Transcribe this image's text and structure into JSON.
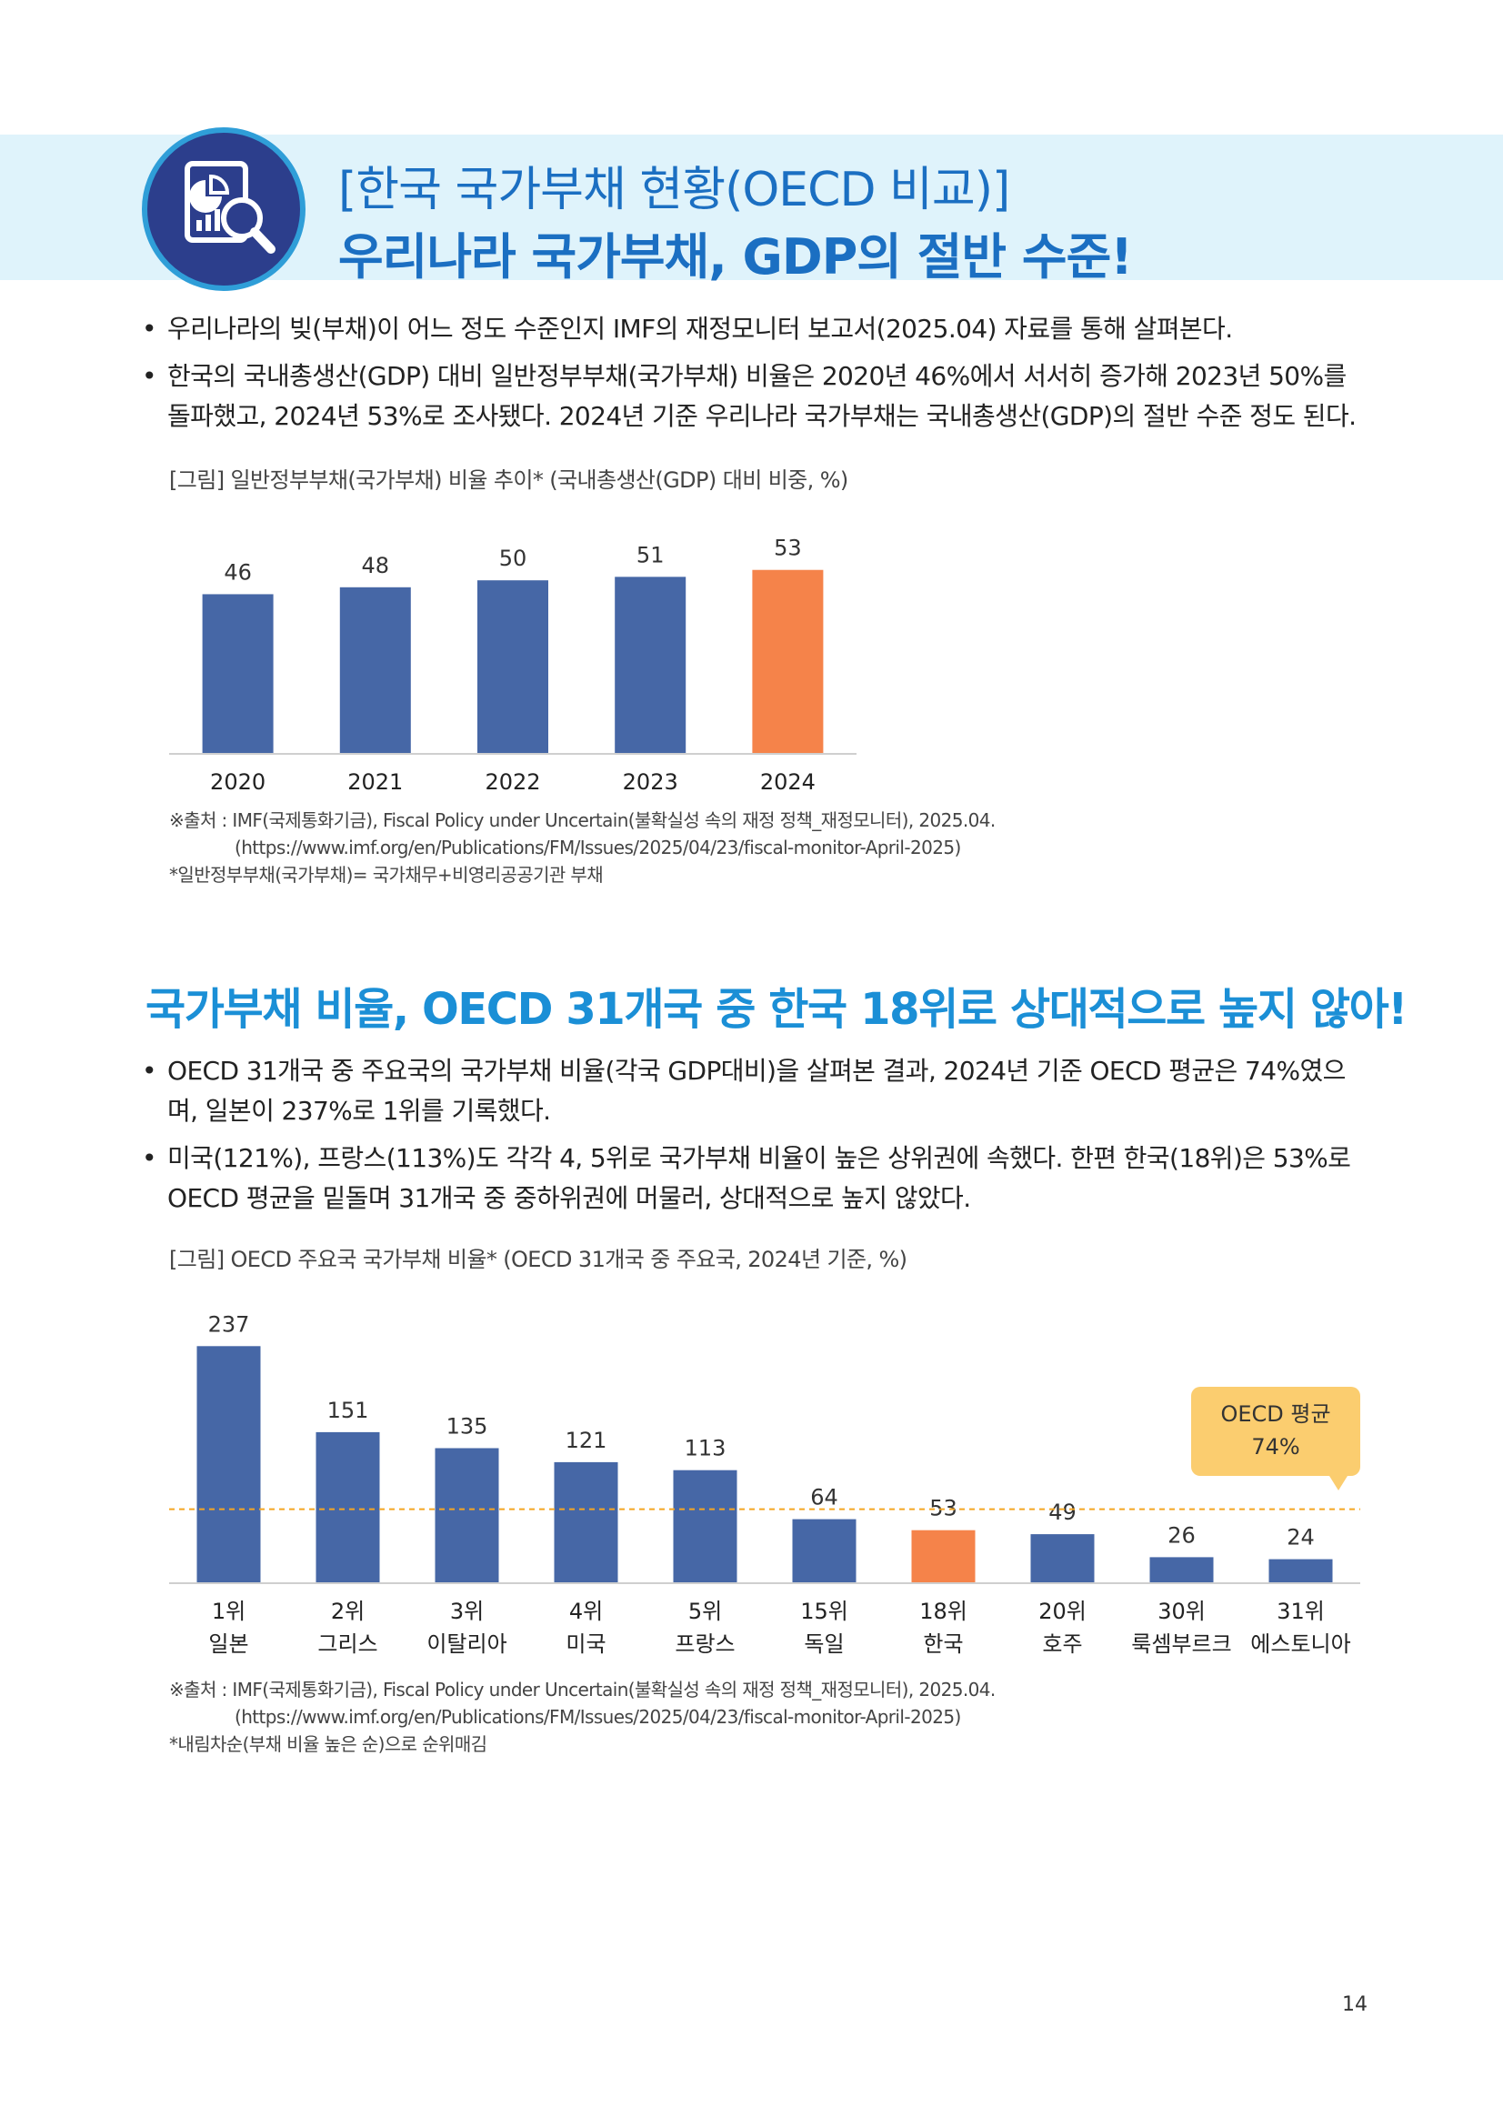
{
  "header": {
    "title_line1": "[한국 국가부채 현황(OECD 비교)]",
    "title_line2": "우리나라 국가부채, GDP의 절반 수준!",
    "icon": "report-magnifier-icon"
  },
  "section1": {
    "bullets": [
      "우리나라의 빚(부채)이 어느 정도 수준인지 IMF의 재정모니터 보고서(2025.04) 자료를 통해 살펴본다.",
      "한국의 국내총생산(GDP) 대비 일반정부부채(국가부채) 비율은 2020년 46%에서 서서히 증가해 2023년 50%를 돌파했고, 2024년 53%로 조사됐다. 2024년 기준 우리나라 국가부채는 국내총생산(GDP)의 절반 수준 정도 된다."
    ],
    "caption": "[그림] 일반정부부채(국가부채) 비율 추이* (국내총생산(GDP) 대비 비중, %)",
    "source": [
      "※출처 : IMF(국제통화기금), Fiscal Policy under Uncertain(불확실성 속의 재정 정책_재정모니터), 2025.04.",
      "(https://www.imf.org/en/Publications/FM/Issues/2025/04/23/fiscal-monitor-April-2025)",
      "*일반정부부채(국가부채)= 국가채무+비영리공공기관 부채"
    ]
  },
  "section2": {
    "heading": "국가부채 비율, OECD 31개국 중 한국 18위로 상대적으로 높지 않아!",
    "bullets": [
      "OECD 31개국 중 주요국의 국가부채 비율(각국 GDP대비)을 살펴본 결과, 2024년 기준 OECD 평균은 74%였으며, 일본이 237%로 1위를 기록했다.",
      "미국(121%), 프랑스(113%)도 각각 4, 5위로 국가부채 비율이 높은 상위권에 속했다. 한편 한국(18위)은 53%로 OECD 평균을 밑돌며 31개국 중 중하위권에 머물러, 상대적으로 높지 않았다."
    ],
    "caption": "[그림] OECD 주요국 국가부채 비율* (OECD 31개국 중 주요국, 2024년 기준, %)",
    "source": [
      "※출처 : IMF(국제통화기금), Fiscal Policy under Uncertain(불확실성 속의 재정 정책_재정모니터), 2025.04.",
      "(https://www.imf.org/en/Publications/FM/Issues/2025/04/23/fiscal-monitor-April-2025)",
      "*내림차순(부채 비율 높은 순)으로 순위매김"
    ]
  },
  "chart_data": [
    {
      "type": "bar",
      "categories": [
        "2020",
        "2021",
        "2022",
        "2023",
        "2024"
      ],
      "values": [
        46,
        48,
        50,
        51,
        53
      ],
      "highlight_index": 4,
      "ylim": [
        0,
        60
      ],
      "grid": false,
      "colors": {
        "bar": "#4667a6",
        "highlight": "#f5834a"
      }
    },
    {
      "type": "bar",
      "categories": [
        "일본",
        "그리스",
        "이탈리아",
        "미국",
        "프랑스",
        "독일",
        "한국",
        "호주",
        "룩셈부르크",
        "에스토니아"
      ],
      "ranks": [
        "1위",
        "2위",
        "3위",
        "4위",
        "5위",
        "15위",
        "18위",
        "20위",
        "30위",
        "31위"
      ],
      "values": [
        237,
        151,
        135,
        121,
        113,
        64,
        53,
        49,
        26,
        24
      ],
      "highlight_index": 6,
      "reference_line": {
        "value": 74,
        "label_line1": "OECD 평균",
        "label_line2": "74%"
      },
      "ylim": [
        0,
        260
      ],
      "grid": false,
      "colors": {
        "bar": "#4667a6",
        "highlight": "#f5834a",
        "reference": "#f5a623",
        "callout": "#fbcd6f"
      }
    }
  ],
  "page_number": "14"
}
